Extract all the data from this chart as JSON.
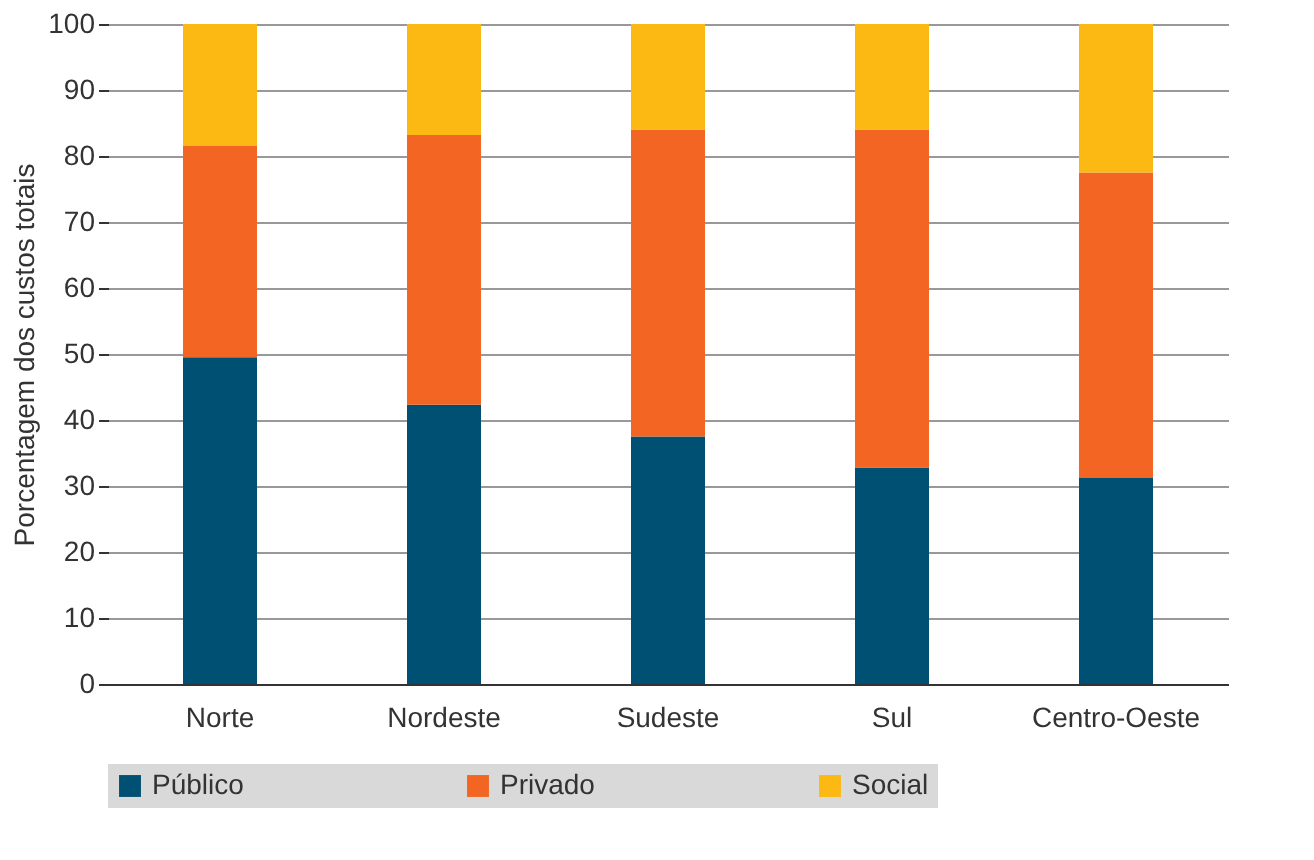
{
  "chart_data": {
    "type": "bar",
    "stacked": true,
    "ylabel": "Porcentagem dos custos totais",
    "categories": [
      "Norte",
      "Nordeste",
      "Sudeste",
      "Sul",
      "Centro-Oeste"
    ],
    "series": [
      {
        "name": "Público",
        "color": "#005073",
        "values": [
          49.5,
          42.3,
          37.5,
          32.8,
          31.2
        ]
      },
      {
        "name": "Privado",
        "color": "#f26522",
        "values": [
          32,
          40.9,
          46.5,
          51.2,
          46.3
        ]
      },
      {
        "name": "Social",
        "color": "#fdb913",
        "values": [
          18.5,
          16.8,
          16,
          16,
          22.5
        ]
      }
    ],
    "ylim": [
      0,
      100
    ],
    "yticks": [
      0,
      10,
      20,
      30,
      40,
      50,
      60,
      70,
      80,
      90,
      100
    ],
    "grid": "y",
    "legend": "bottom"
  }
}
